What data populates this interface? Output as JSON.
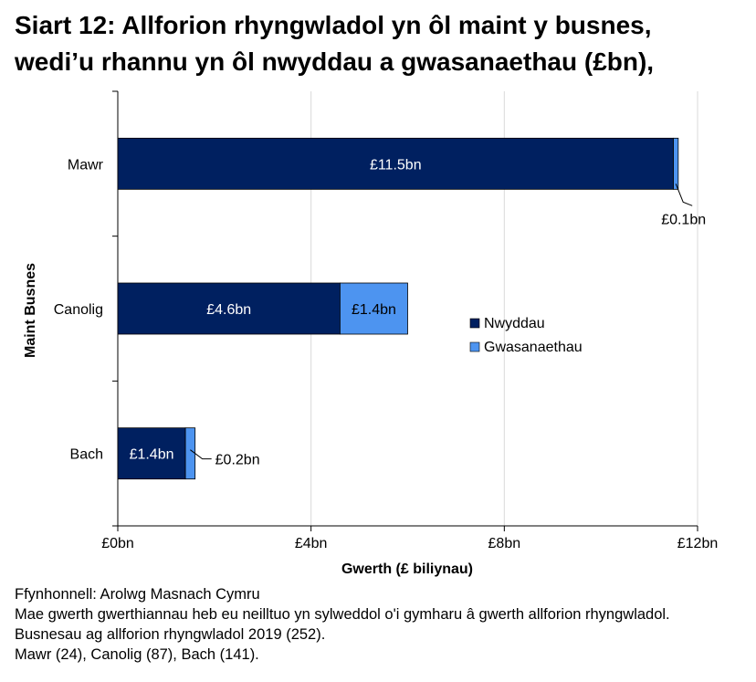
{
  "title_line1": "Siart 12: Allforion rhyngwladol yn ôl maint y busnes,",
  "title_line2": "wedi’u rhannu yn ôl nwyddau a gwasanaethau (£bn),",
  "chart_data": {
    "type": "bar",
    "orientation": "horizontal",
    "stacked": true,
    "categories": [
      "Mawr",
      "Canolig",
      "Bach"
    ],
    "series": [
      {
        "name": "Nwyddau",
        "values": [
          11.5,
          4.6,
          1.4
        ],
        "labels": [
          "£11.5bn",
          "£4.6bn",
          "£1.4bn"
        ],
        "color": "#002060"
      },
      {
        "name": "Gwasanaethau",
        "values": [
          0.1,
          1.4,
          0.2
        ],
        "labels": [
          "£0.1bn",
          "£1.4bn",
          "£0.2bn"
        ],
        "color": "#4d94f0"
      }
    ],
    "xlabel": "Gwerth (£ biliynau)",
    "ylabel": "Maint Busnes",
    "xlim": [
      0,
      12
    ],
    "xticks": [
      0,
      4,
      8,
      12
    ],
    "xtick_labels": [
      "£0bn",
      "£4bn",
      "£8bn",
      "£12bn"
    ],
    "grid": true,
    "legend_position": "right"
  },
  "notes": [
    "Ffynhonnell: Arolwg Masnach Cymru",
    "Mae gwerth gwerthiannau heb eu neilltuo yn sylweddol o'i gymharu â gwerth allforion rhyngwladol.",
    "Busnesau ag allforion rhyngwladol 2019 (252).",
    "Mawr (24), Canolig (87), Bach (141)."
  ]
}
